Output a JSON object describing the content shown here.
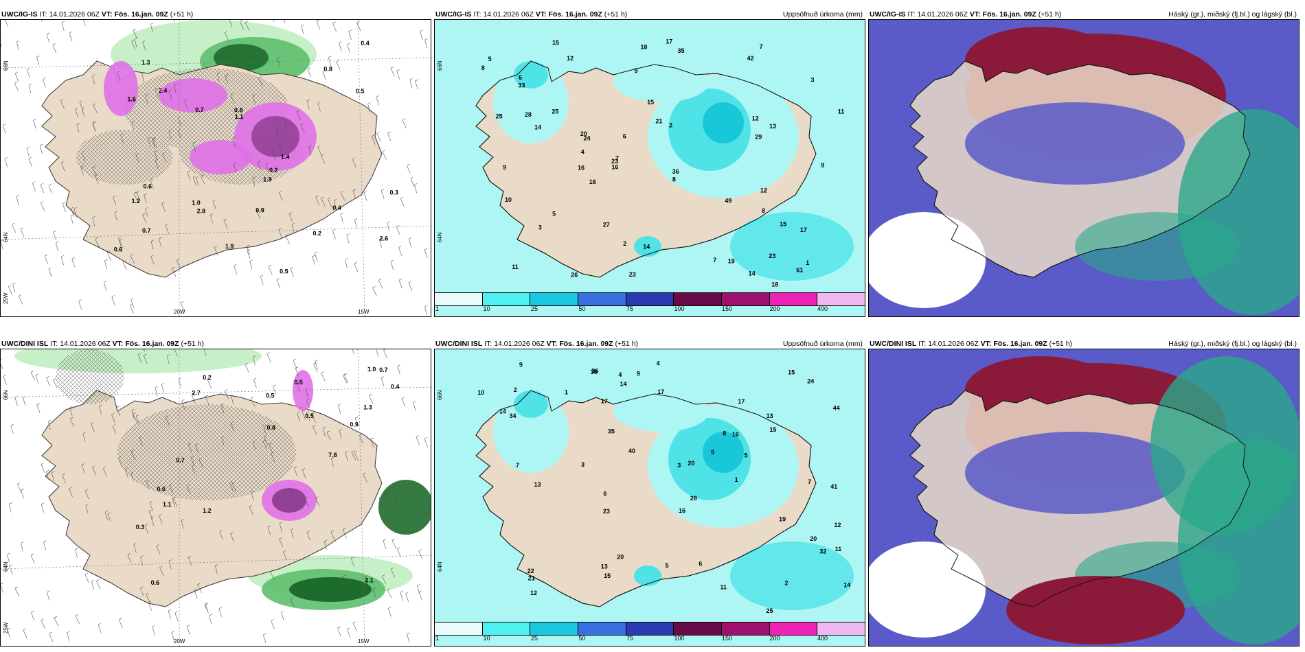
{
  "colors": {
    "land": "#eadbc8",
    "sea_white": "#ffffff",
    "precip_light": "#aef6f4",
    "precip_mid": "#4fe3e8",
    "precip_high": "#19c8d8",
    "snow_light": "#c8f0c8",
    "snow_mid": "#5fbf6f",
    "snow_dark": "#1e6b2e",
    "snow_pink": "#e070e8",
    "snow_purple": "#8a3c8c",
    "cloud_high": "#8b1a3a",
    "cloud_mid": "#5a5ac8",
    "cloud_low": "#2aa88a"
  },
  "panels": [
    {
      "model": "UWC/IG-IS",
      "it_label": "IT:",
      "it_value": "14.01.2026 06Z",
      "vt_label": "VT:",
      "vt_value": "Fös. 16.jan. 09Z",
      "lead": "(+51 h)",
      "right_title": "",
      "type": "snow",
      "lat_labels": [
        "66N",
        "64N",
        "25W"
      ],
      "lon_labels": [
        "20W",
        "15W"
      ],
      "values": [
        "1.0",
        "0.7",
        "1.3",
        "0.5",
        "0.6",
        "0.2",
        "0.4",
        "1.4",
        "1.9",
        "2.4",
        "1.6",
        "1.9",
        "0.7",
        "0.5",
        "0.8",
        "2.6",
        "2.8",
        "1.1",
        "0.3",
        "0.8",
        "0.4",
        "0.2",
        "0.9",
        "1.2",
        "0.6"
      ]
    },
    {
      "model": "UWC/IG-IS",
      "it_label": "IT:",
      "it_value": "14.01.2026 06Z",
      "vt_label": "VT:",
      "vt_value": "Fös. 16.jan. 09Z",
      "lead": "(+51 h)",
      "right_title": "Uppsöfnuð úrkoma (mm)",
      "type": "precip",
      "lat_labels": [
        "66N",
        "64N"
      ],
      "values": [
        "3",
        "7",
        "8",
        "9",
        "12",
        "15",
        "23",
        "6",
        "5",
        "2",
        "5",
        "61",
        "42",
        "49",
        "17",
        "7",
        "15",
        "21",
        "23",
        "28",
        "33",
        "16",
        "8",
        "14",
        "26",
        "18",
        "19",
        "11",
        "29",
        "20",
        "18",
        "16",
        "17",
        "25",
        "27",
        "13",
        "10",
        "24",
        "23",
        "25",
        "14",
        "9",
        "12",
        "14",
        "15",
        "11",
        "12",
        "16",
        "36",
        "35",
        "3",
        "2",
        "1",
        "7",
        "5",
        "6",
        "4",
        "8"
      ],
      "colorbar": [
        "1",
        "10",
        "25",
        "50",
        "75",
        "100",
        "150",
        "200",
        "400"
      ]
    },
    {
      "model": "UWC/IG-IS",
      "it_label": "IT:",
      "it_value": "14.01.2026 06Z",
      "vt_label": "VT:",
      "vt_value": "Fös. 16.jan. 09Z",
      "lead": "(+51 h)",
      "right_title": "Háský (gr.), miðský (fj.bl.) og lágský (bl.)",
      "type": "cloud"
    },
    {
      "model": "UWC/DINI ISL",
      "it_label": "IT:",
      "it_value": "14.01.2026 06Z",
      "vt_label": "VT:",
      "vt_value": "Fös. 16.jan. 09Z",
      "lead": "(+51 h)",
      "right_title": "",
      "type": "snow",
      "lat_labels": [
        "66N",
        "64N",
        "25W"
      ],
      "lon_labels": [
        "20W",
        "15W"
      ],
      "values": [
        "0.6",
        "0.3",
        "1.0",
        "1.3",
        "0.8",
        "0.5",
        "0.6",
        "0.2",
        "0.7",
        "2.7",
        "7.8",
        "2.1",
        "0.5",
        "1.1",
        "0.4",
        "0.5",
        "0.7",
        "0.9",
        "1.2"
      ]
    },
    {
      "model": "UWC/DINI ISL",
      "it_label": "IT:",
      "it_value": "14.01.2026 06Z",
      "vt_label": "VT:",
      "vt_value": "Fös. 16.jan. 09Z",
      "lead": "(+51 h)",
      "right_title": "Uppsöfnuð úrkoma (mm)",
      "type": "precip",
      "lat_labels": [
        "66N",
        "64N"
      ],
      "values": [
        "5",
        "8",
        "9",
        "17",
        "20",
        "12",
        "15",
        "16",
        "17",
        "36",
        "35",
        "13",
        "6",
        "20",
        "15",
        "14",
        "11",
        "17",
        "19",
        "44",
        "13",
        "40",
        "12",
        "5",
        "7",
        "3",
        "2",
        "1",
        "4",
        "24",
        "22",
        "30",
        "23",
        "21",
        "15",
        "25",
        "28",
        "32",
        "16",
        "13",
        "14",
        "11",
        "34",
        "14",
        "20",
        "2",
        "3",
        "9",
        "6",
        "4",
        "5",
        "41",
        "1",
        "7",
        "10"
      ],
      "colorbar": [
        "1",
        "10",
        "25",
        "50",
        "75",
        "100",
        "150",
        "200",
        "400"
      ]
    },
    {
      "model": "UWC/DINI ISL",
      "it_label": "IT:",
      "it_value": "14.01.2026 06Z",
      "vt_label": "VT:",
      "vt_value": "Fös. 16.jan. 09Z",
      "lead": "(+51 h)",
      "right_title": "Háský (gr.), miðský (fj.bl.) og lágský (bl.)",
      "type": "cloud"
    }
  ]
}
